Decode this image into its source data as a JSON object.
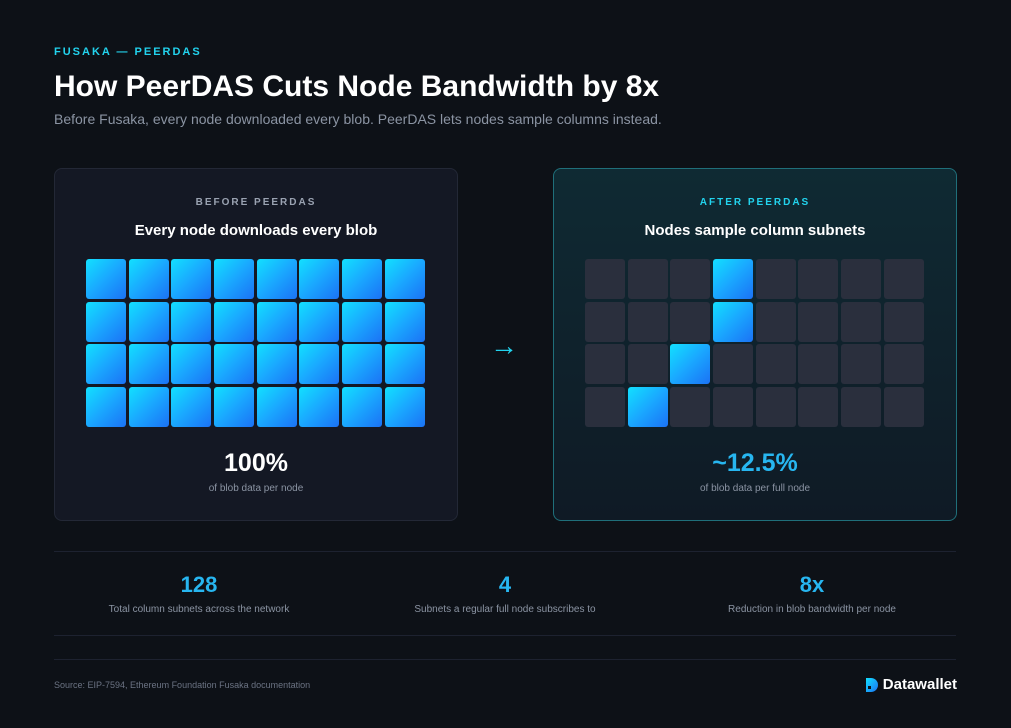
{
  "header": {
    "eyebrow": "FUSAKA — PEERDAS",
    "title": "How PeerDAS Cuts Node Bandwidth by 8x",
    "subtitle": "Before Fusaka, every node downloaded every blob. PeerDAS lets nodes sample columns instead."
  },
  "before": {
    "label": "BEFORE PEERDAS",
    "heading": "Every node downloads every blob",
    "value": "100%",
    "caption": "of blob data per node",
    "grid": [
      [
        1,
        1,
        1,
        1,
        1,
        1,
        1,
        1
      ],
      [
        1,
        1,
        1,
        1,
        1,
        1,
        1,
        1
      ],
      [
        1,
        1,
        1,
        1,
        1,
        1,
        1,
        1
      ],
      [
        1,
        1,
        1,
        1,
        1,
        1,
        1,
        1
      ]
    ]
  },
  "arrow": "→",
  "after": {
    "label": "AFTER PEERDAS",
    "heading": "Nodes sample column subnets",
    "value": "~12.5%",
    "caption": "of blob data per full node",
    "grid": [
      [
        0,
        0,
        0,
        1,
        0,
        0,
        0,
        0
      ],
      [
        0,
        0,
        0,
        1,
        0,
        0,
        0,
        0
      ],
      [
        0,
        0,
        1,
        0,
        0,
        0,
        0,
        0
      ],
      [
        0,
        1,
        0,
        0,
        0,
        0,
        0,
        0
      ]
    ]
  },
  "stats": [
    {
      "value": "128",
      "label": "Total column subnets across the network"
    },
    {
      "value": "4",
      "label": "Subnets a regular full node subscribes to"
    },
    {
      "value": "8x",
      "label": "Reduction in blob bandwidth per node"
    }
  ],
  "footer": {
    "source": "Source: EIP-7594, Ethereum Foundation Fusaka documentation",
    "brand": "Datawallet",
    "brand_icon": "datawallet-logo-icon"
  },
  "colors": {
    "accent": "#22d3ee",
    "stat": "#27b6f0",
    "background": "#0d1117"
  }
}
